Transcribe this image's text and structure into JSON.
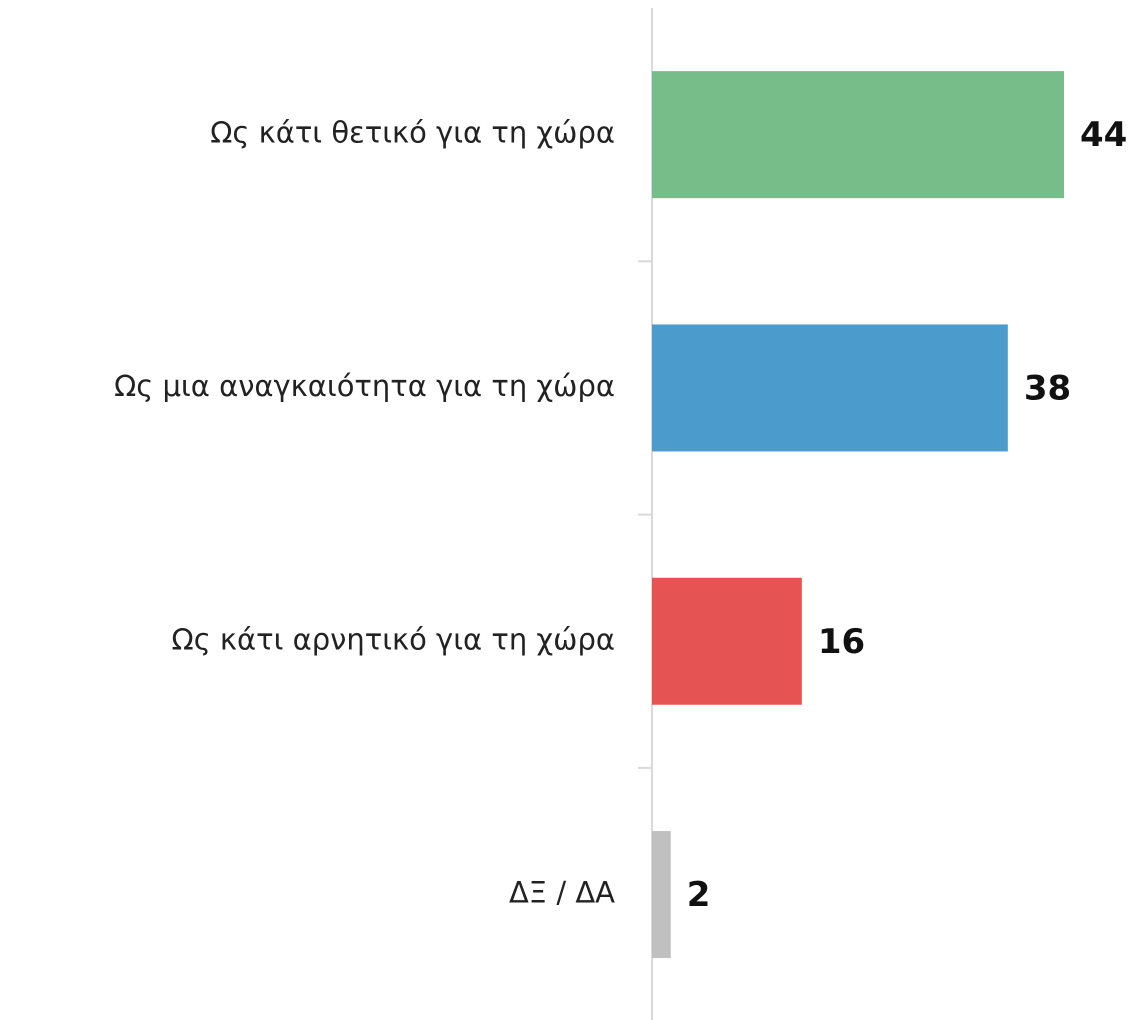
{
  "chart_data": {
    "type": "bar",
    "orientation": "horizontal",
    "categories": [
      "Ως κάτι θετικό για τη χώρα",
      "Ως μια αναγκαιότητα για τη χώρα",
      "Ως κάτι αρνητικό για τη χώρα",
      "ΔΞ / ΔΑ"
    ],
    "values": [
      44,
      38,
      16,
      2
    ],
    "colors": [
      "#77bd89",
      "#4b9bcc",
      "#e55353",
      "#c0c0c0"
    ]
  }
}
